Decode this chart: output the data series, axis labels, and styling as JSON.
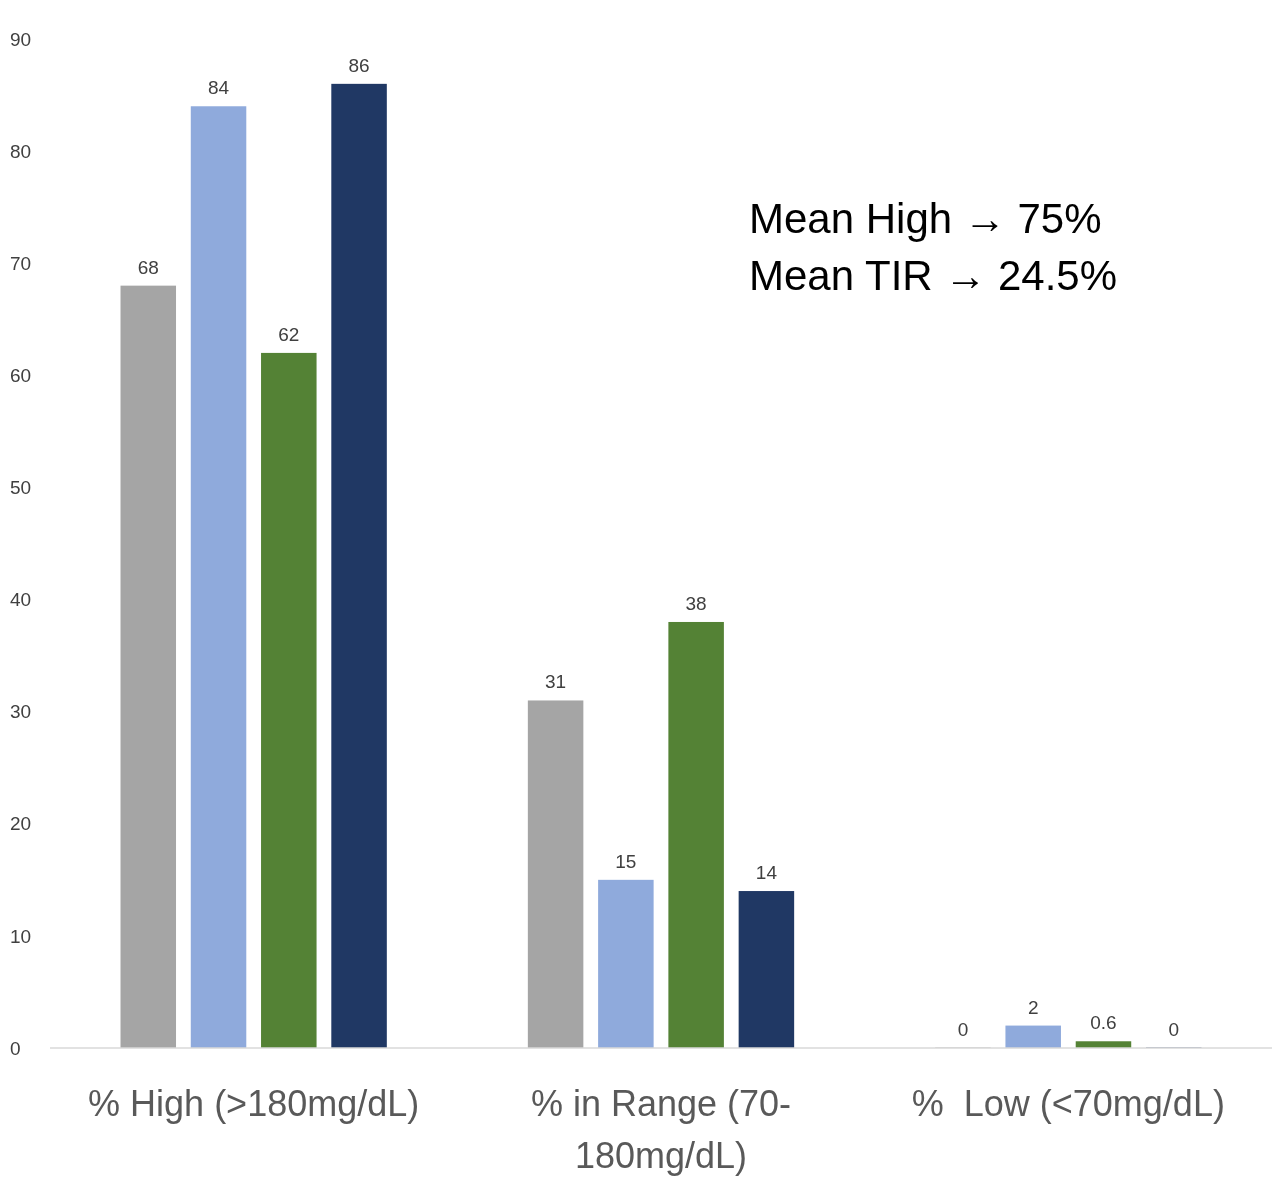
{
  "chart_data": {
    "type": "bar",
    "categories": [
      "% High (>180mg/dL)",
      "% in Range (70-180mg/dL)",
      "%  Low (<70mg/dL)"
    ],
    "series": [
      {
        "color": "#a5a5a5",
        "values": [
          68,
          31,
          0
        ]
      },
      {
        "color": "#8faadc",
        "values": [
          84,
          15,
          2
        ]
      },
      {
        "color": "#548235",
        "values": [
          62,
          38,
          0.6
        ]
      },
      {
        "color": "#203864",
        "values": [
          86,
          14,
          0
        ]
      }
    ],
    "ylim": [
      0,
      90
    ],
    "yticks": [
      0,
      10,
      20,
      30,
      40,
      50,
      60,
      70,
      80,
      90
    ],
    "grid": false,
    "data_labels": true,
    "annotations": [
      "Mean High → 75%",
      "Mean TIR → 24.5%"
    ]
  }
}
